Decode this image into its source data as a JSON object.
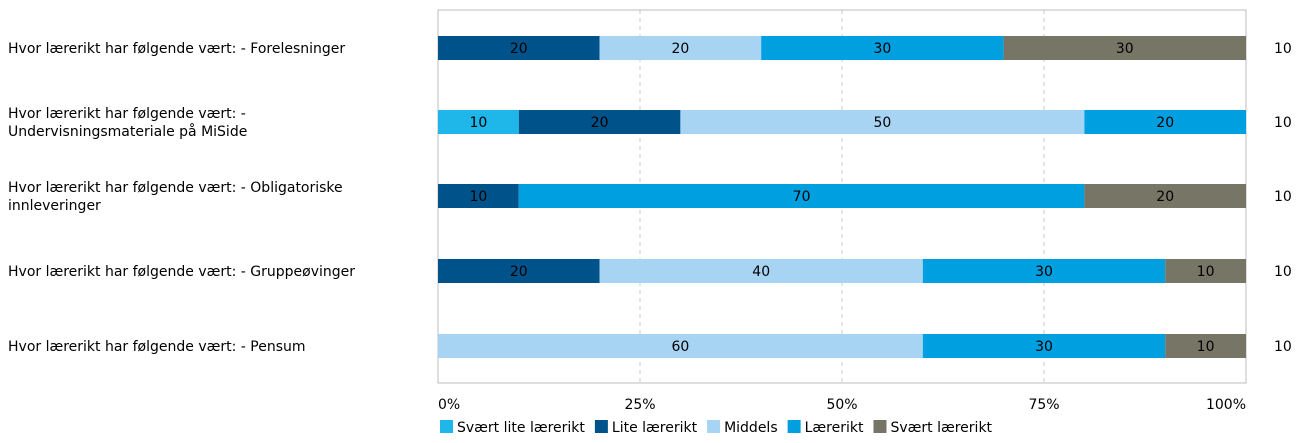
{
  "chart_data": {
    "type": "bar",
    "orientation": "horizontal",
    "stacked": true,
    "categories": [
      [
        "Hvor lærerikt har følgende vært: - Forelesninger"
      ],
      [
        "Hvor lærerikt har følgende vært: -",
        "Undervisningsmateriale på MiSide"
      ],
      [
        "Hvor lærerikt har følgende vært: - Obligatoriske",
        "innleveringer"
      ],
      [
        "Hvor lærerikt har følgende vært: - Gruppeøvinger"
      ],
      [
        "Hvor lærerikt har følgende vært: - Pensum"
      ]
    ],
    "series": [
      {
        "name": "Svært lite lærerikt",
        "color": "#1fb6e9",
        "values": [
          0,
          10,
          0,
          0,
          0
        ]
      },
      {
        "name": "Lite lærerikt",
        "color": "#00538a",
        "values": [
          20,
          20,
          10,
          20,
          0
        ]
      },
      {
        "name": "Middels",
        "color": "#a8d4f4",
        "values": [
          20,
          50,
          0,
          40,
          60
        ]
      },
      {
        "name": "Lærerikt",
        "color": "#009fe0",
        "values": [
          30,
          20,
          70,
          30,
          30
        ]
      },
      {
        "name": "Svært lærerikt",
        "color": "#777566",
        "values": [
          30,
          0,
          20,
          10,
          10
        ]
      }
    ],
    "segment_labels": [
      [
        "",
        "20",
        "20",
        "30",
        "30"
      ],
      [
        "10",
        "20",
        "50",
        "20",
        ""
      ],
      [
        "",
        "10",
        "",
        "70",
        "20"
      ],
      [
        "",
        "20",
        "40",
        "30",
        "10"
      ],
      [
        "",
        "",
        "60",
        "30",
        "10"
      ]
    ],
    "n_values": [
      "10",
      "10",
      "10",
      "10",
      "10"
    ],
    "x_ticks": [
      "0%",
      "25%",
      "50%",
      "75%",
      "100%"
    ],
    "xlim": [
      0,
      100
    ],
    "grid": true,
    "legend_position": "bottom"
  }
}
